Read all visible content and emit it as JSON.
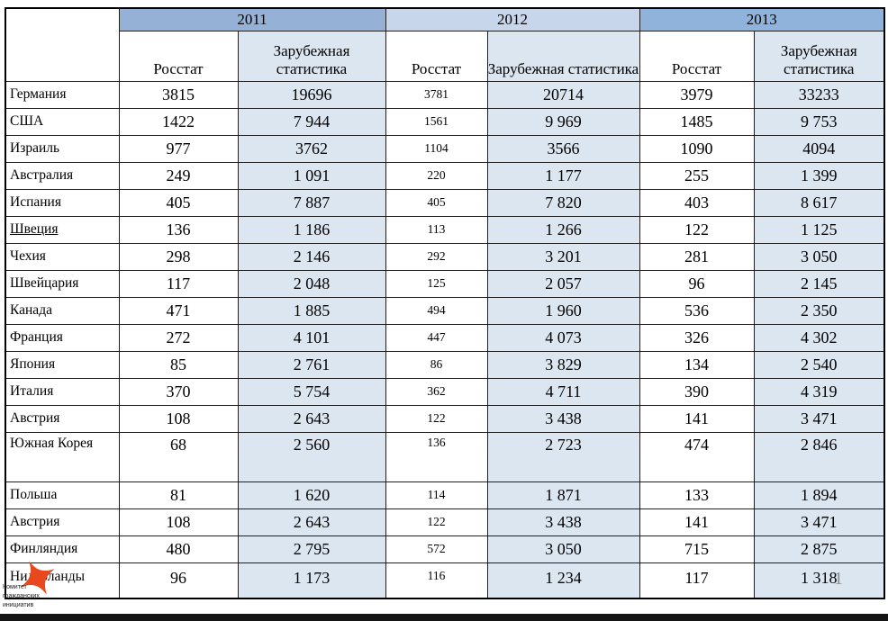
{
  "page": {
    "page_number": "1"
  },
  "logo": {
    "text_line1": "Комитет",
    "text_line2": "гражданских",
    "text_line3": "инициатив",
    "star_color": "#e8481c"
  },
  "colors": {
    "band_2011": "#95b1d5",
    "band_2012": "#c7d6ea",
    "band_2013": "#90b3dc",
    "light_cell": "#dce6f1",
    "border": "#1f1f1f"
  },
  "table": {
    "year_groups": [
      "2011",
      "2012",
      "2013"
    ],
    "subheader_rosstat": "Росстат",
    "subheader_foreign": "Зарубежная статистика",
    "column_names": [
      "rosstat-2011",
      "foreign-2011",
      "rosstat-2012",
      "foreign-2012",
      "rosstat-2013",
      "foreign-2013"
    ],
    "rows": [
      {
        "country": "Германия",
        "values": [
          "3815",
          "19696",
          "3781",
          "20714",
          "3979",
          "33233"
        ]
      },
      {
        "country": "США",
        "values": [
          "1422",
          "7 944",
          "1561",
          "9 969",
          "1485",
          "9 753"
        ]
      },
      {
        "country": "Израиль",
        "values": [
          "977",
          "3762",
          "1104",
          "3566",
          "1090",
          "4094"
        ]
      },
      {
        "country": "Австралия",
        "values": [
          "249",
          "1 091",
          "220",
          "1 177",
          "255",
          "1 399"
        ]
      },
      {
        "country": "Испания",
        "values": [
          "405",
          "7 887",
          "405",
          "7 820",
          "403",
          "8 617"
        ]
      },
      {
        "country": "Швеция",
        "values": [
          "136",
          "1 186",
          "113",
          "1 266",
          "122",
          "1 125"
        ],
        "underline": true
      },
      {
        "country": "Чехия",
        "values": [
          "298",
          "2 146",
          "292",
          "3 201",
          "281",
          "3 050"
        ]
      },
      {
        "country": "Швейцария",
        "values": [
          "117",
          "2 048",
          "125",
          "2 057",
          "96",
          "2 145"
        ]
      },
      {
        "country": "Канада",
        "values": [
          "471",
          "1 885",
          "494",
          "1 960",
          "536",
          "2 350"
        ]
      },
      {
        "country": "Франция",
        "values": [
          "272",
          "4 101",
          "447",
          "4 073",
          "326",
          "4 302"
        ]
      },
      {
        "country": "Япония",
        "values": [
          "85",
          "2 761",
          "86",
          "3 829",
          "134",
          "2 540"
        ]
      },
      {
        "country": "Италия",
        "values": [
          "370",
          "5 754",
          "362",
          "4 711",
          "390",
          "4 319"
        ]
      },
      {
        "country": "Австрия",
        "values": [
          "108",
          "2 643",
          "122",
          "3 438",
          "141",
          "3 471"
        ]
      },
      {
        "country": "Южная Корея",
        "values": [
          "68",
          "2 560",
          "136",
          "2 723",
          "474",
          "2 846"
        ],
        "tall": true
      },
      {
        "country": "Польша",
        "values": [
          "81",
          "1 620",
          "114",
          "1 871",
          "133",
          "1 894"
        ]
      },
      {
        "country": "Австрия",
        "values": [
          "108",
          "2 643",
          "122",
          "3 438",
          "141",
          "3 471"
        ]
      },
      {
        "country": "Финляндия",
        "values": [
          "480",
          "2 795",
          "572",
          "3 050",
          "715",
          "2 875"
        ]
      },
      {
        "country": "Нидерланды",
        "values": [
          "96",
          "1 173",
          "116",
          "1 234",
          "117",
          "1 318"
        ]
      }
    ]
  }
}
